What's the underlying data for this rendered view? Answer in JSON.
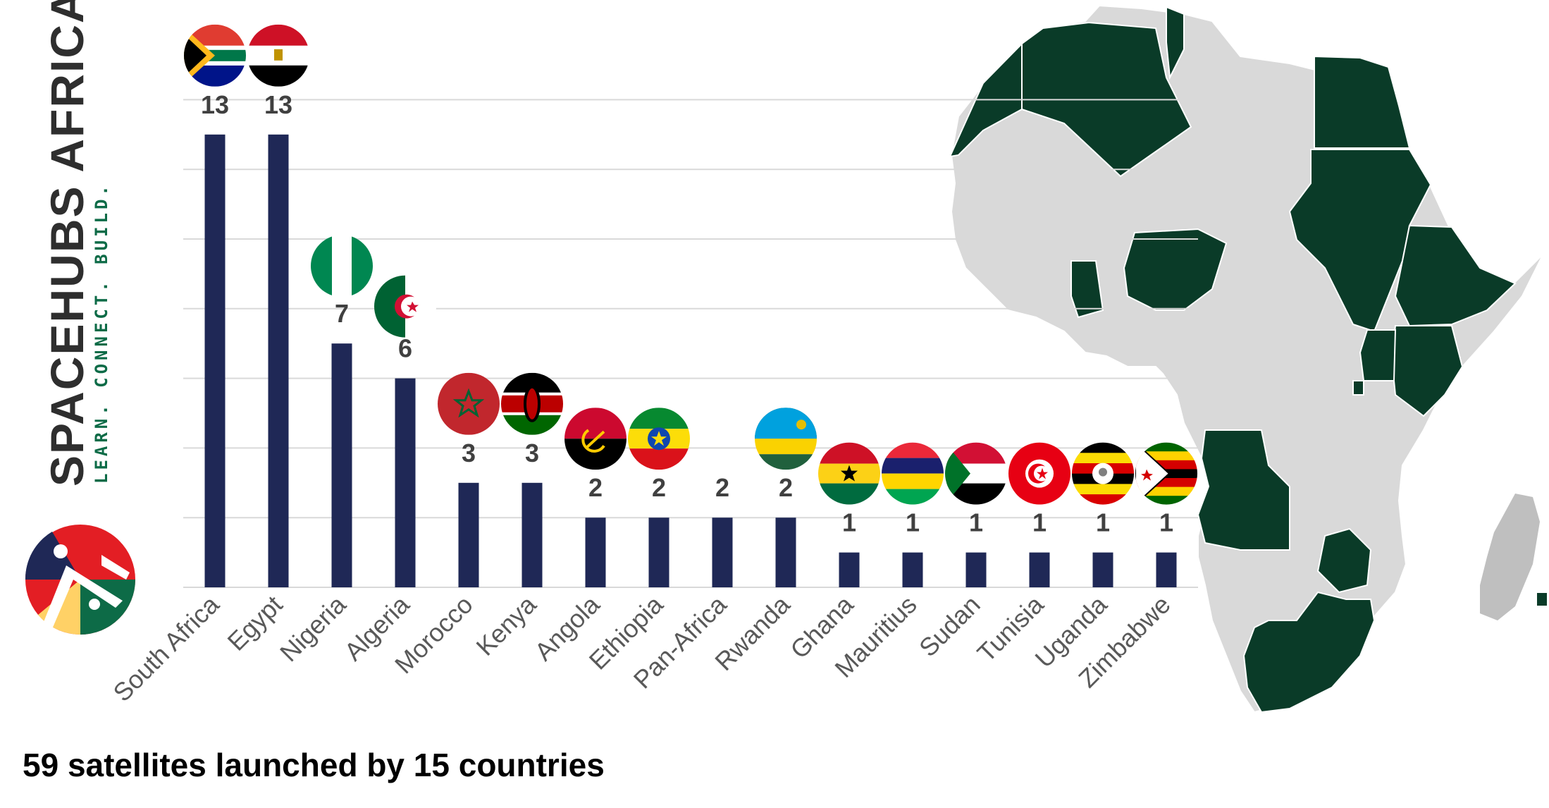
{
  "brand": {
    "name": "SPACEHUBS AFRICA",
    "tagline": "LEARN. CONNECT. BUILD."
  },
  "caption": "59 satellites launched by 15 countries",
  "colors": {
    "bar": "#1f2856",
    "grid": "#d9d9d9",
    "value_label": "#404040",
    "category_label": "#595959",
    "map_highlight": "#0a3b28",
    "map_other": "#d9d9d9",
    "brand_green": "#0d6b47"
  },
  "chart_data": {
    "type": "bar",
    "title": "",
    "xlabel": "",
    "ylabel": "",
    "ylim": [
      0,
      14
    ],
    "grid": true,
    "categories": [
      "South Africa",
      "Egypt",
      "Nigeria",
      "Algeria",
      "Morocco",
      "Kenya",
      "Angola",
      "Ethiopia",
      "Pan-Africa",
      "Rwanda",
      "Ghana",
      "Mauritius",
      "Sudan",
      "Tunisia",
      "Uganda",
      "Zimbabwe"
    ],
    "values": [
      13,
      13,
      7,
      6,
      3,
      3,
      2,
      2,
      2,
      2,
      1,
      1,
      1,
      1,
      1,
      1
    ],
    "flags": [
      "south-africa-flag",
      "egypt-flag",
      "nigeria-flag",
      "algeria-flag",
      "morocco-flag",
      "kenya-flag",
      "angola-flag",
      "ethiopia-flag",
      "",
      "rwanda-flag",
      "ghana-flag",
      "mauritius-flag",
      "sudan-flag",
      "tunisia-flag",
      "uganda-flag",
      "zimbabwe-flag"
    ]
  },
  "map": {
    "icon": "africa-map-icon",
    "highlighted_countries": [
      "South Africa",
      "Egypt",
      "Nigeria",
      "Algeria",
      "Morocco",
      "Kenya",
      "Angola",
      "Ethiopia",
      "Rwanda",
      "Ghana",
      "Mauritius",
      "Sudan",
      "Tunisia",
      "Uganda",
      "Zimbabwe"
    ]
  }
}
